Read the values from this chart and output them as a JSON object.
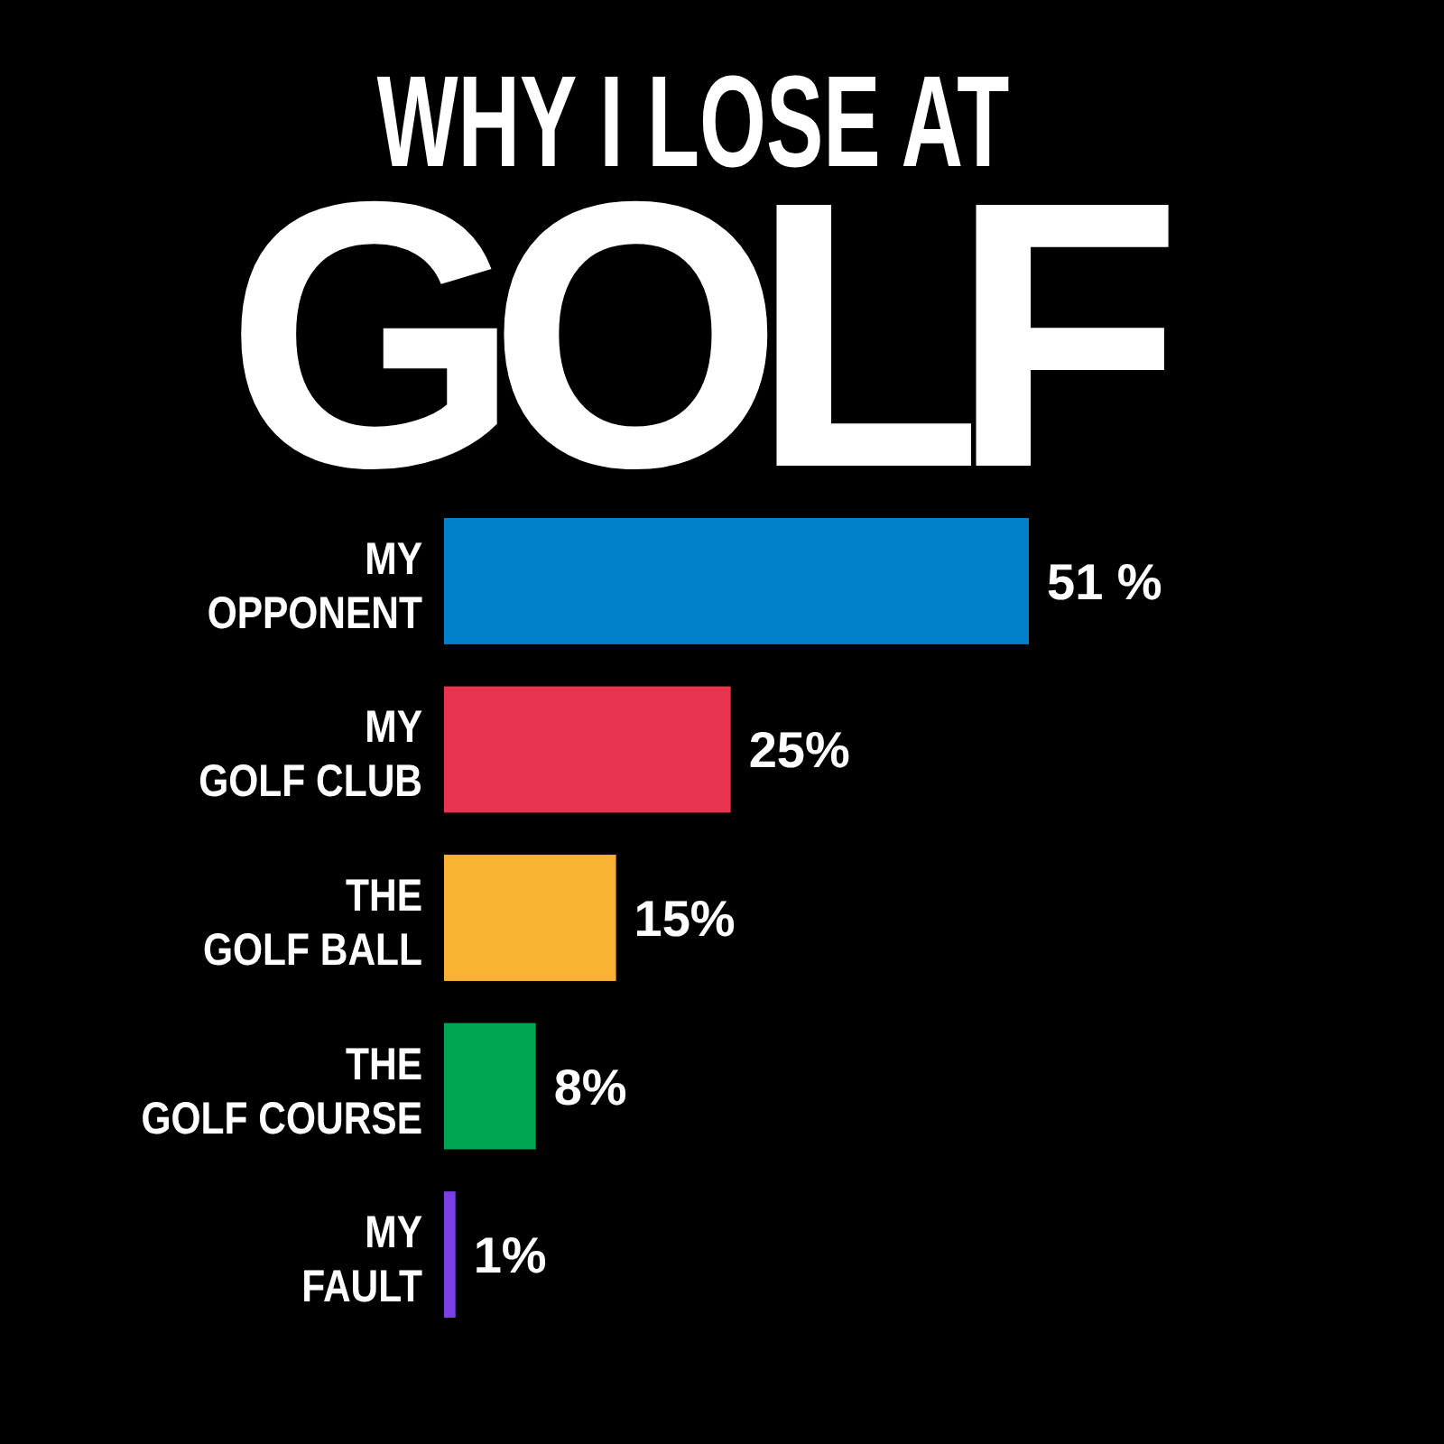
{
  "chart_data": {
    "type": "bar",
    "orientation": "horizontal",
    "title": "WHY I LOSE AT",
    "subtitle": "GOLF",
    "categories": [
      "MY OPPONENT",
      "MY GOLF CLUB",
      "THE GOLF BALL",
      "THE GOLF COURSE",
      "MY FAULT"
    ],
    "values": [
      51,
      25,
      15,
      8,
      1
    ],
    "colors": [
      "#0081c9",
      "#e9344f",
      "#f9b233",
      "#00a651",
      "#7b3fe4"
    ],
    "value_labels": [
      "51 %",
      "25%",
      "15%",
      "8%",
      "1%"
    ]
  }
}
